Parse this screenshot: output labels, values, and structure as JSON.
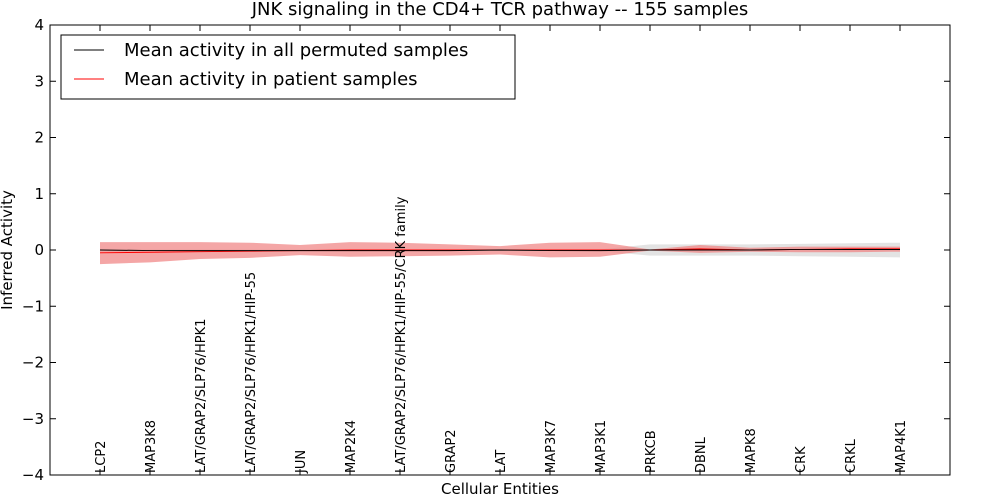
{
  "chart_data": {
    "type": "line",
    "title": "JNK signaling in the CD4+ TCR pathway -- 155 samples",
    "xlabel": "Cellular Entities",
    "ylabel": "Inferred Activity",
    "ylim": [
      -4,
      4
    ],
    "yticks": [
      -4,
      -3,
      -2,
      -1,
      0,
      1,
      2,
      3,
      4
    ],
    "ytick_labels": [
      "−4",
      "−3",
      "−2",
      "−1",
      "0",
      "1",
      "2",
      "3",
      "4"
    ],
    "grid": false,
    "legend_position": "top-left",
    "categories": [
      "LCP2",
      "MAP3K8",
      "LAT/GRAP2/SLP76/HPK1",
      "LAT/GRAP2/SLP76/HPK1/HIP-55",
      "JUN",
      "MAP2K4",
      "LAT/GRAP2/SLP76/HPK1/HIP-55/CRK family",
      "GRAP2",
      "LAT",
      "MAP3K7",
      "MAP3K1",
      "PRKCB",
      "DBNL",
      "MAPK8",
      "CRK",
      "CRKL",
      "MAP4K1"
    ],
    "series": [
      {
        "name": "Mean activity in all permuted samples",
        "color": "#000000",
        "values": [
          0.0,
          -0.01,
          -0.01,
          -0.01,
          -0.01,
          -0.01,
          -0.01,
          -0.01,
          0.0,
          -0.01,
          -0.01,
          0.0,
          0.0,
          0.0,
          0.01,
          0.01,
          0.01
        ],
        "band_low": [
          -0.01,
          -0.02,
          -0.02,
          -0.02,
          -0.02,
          -0.02,
          -0.02,
          -0.01,
          -0.01,
          -0.02,
          -0.02,
          -0.1,
          -0.1,
          -0.1,
          -0.11,
          -0.12,
          -0.13
        ],
        "band_high": [
          0.01,
          0.01,
          0.01,
          0.01,
          0.01,
          0.01,
          0.01,
          0.01,
          0.01,
          0.01,
          0.01,
          0.1,
          0.1,
          0.1,
          0.11,
          0.12,
          0.13
        ],
        "band_color": "#d9d9d9"
      },
      {
        "name": "Mean activity in patient samples",
        "color": "#ff0000",
        "values": [
          -0.05,
          -0.04,
          -0.03,
          -0.02,
          -0.01,
          0.0,
          0.0,
          0.0,
          0.0,
          0.0,
          0.0,
          0.0,
          0.02,
          0.0,
          0.01,
          0.02,
          0.02
        ],
        "band_low": [
          -0.25,
          -0.22,
          -0.16,
          -0.14,
          -0.09,
          -0.12,
          -0.11,
          -0.1,
          -0.08,
          -0.13,
          -0.12,
          -0.01,
          -0.05,
          -0.03,
          -0.04,
          -0.04,
          -0.03
        ],
        "band_high": [
          0.14,
          0.14,
          0.14,
          0.13,
          0.09,
          0.14,
          0.13,
          0.1,
          0.07,
          0.13,
          0.14,
          0.01,
          0.09,
          0.04,
          0.06,
          0.06,
          0.06
        ],
        "band_color": "#f08080"
      }
    ]
  }
}
